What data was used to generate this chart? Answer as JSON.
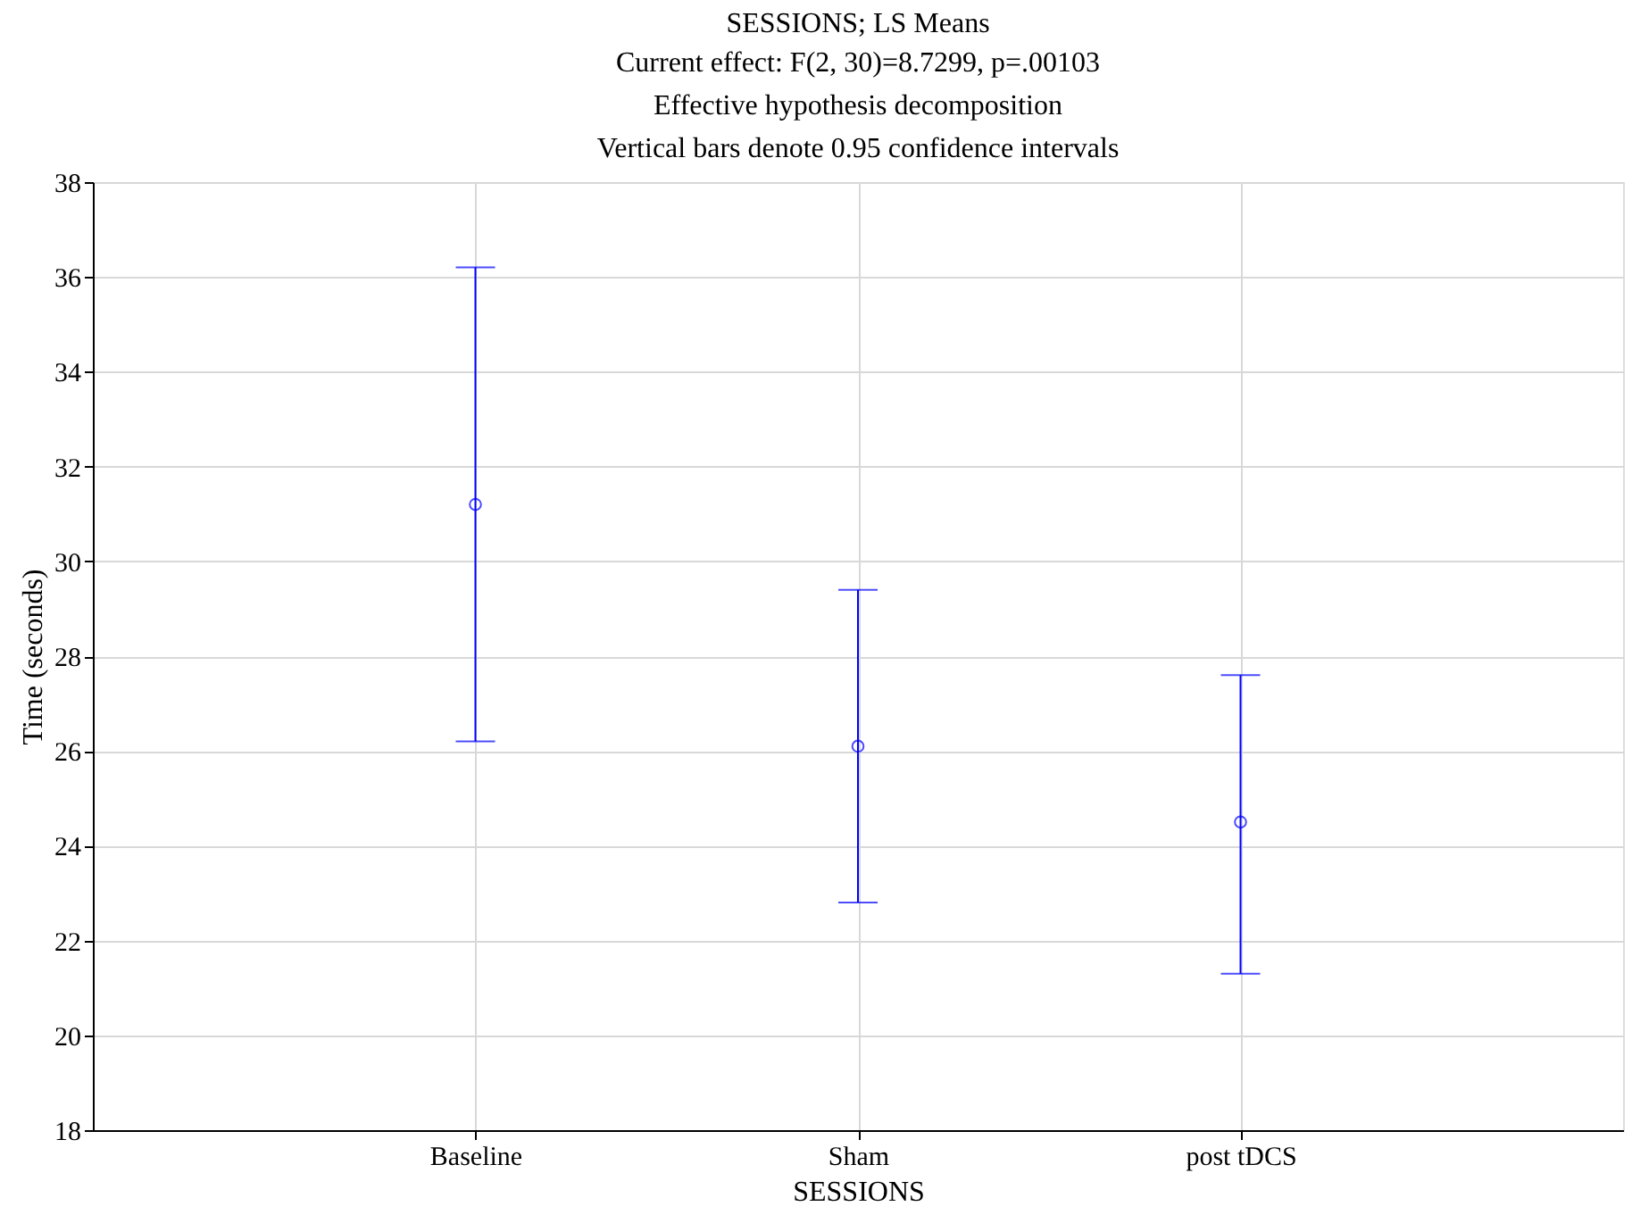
{
  "chart_data": {
    "type": "scatter",
    "title": "SESSIONS; LS Means",
    "subtitle": "Current effect: F(2, 30)=8.7299, p=.00103\nEffective hypothesis decomposition\nVertical bars denote 0.95 confidence intervals",
    "xlabel": "SESSIONS",
    "ylabel": "Time (seconds)",
    "categories": [
      "Baseline",
      "Sham",
      "post tDCS"
    ],
    "series": [
      {
        "color": "#0000ff",
        "values": [
          31.2,
          26.1,
          24.5
        ],
        "errors": [
          [
            26.2,
            36.2
          ],
          [
            22.8,
            29.4
          ],
          [
            21.3,
            27.6
          ]
        ]
      }
    ],
    "ylim": [
      18,
      38
    ],
    "yticks": [
      18,
      20,
      22,
      24,
      26,
      28,
      30,
      32,
      34,
      36,
      38
    ],
    "grid": true,
    "marker": "circle"
  }
}
